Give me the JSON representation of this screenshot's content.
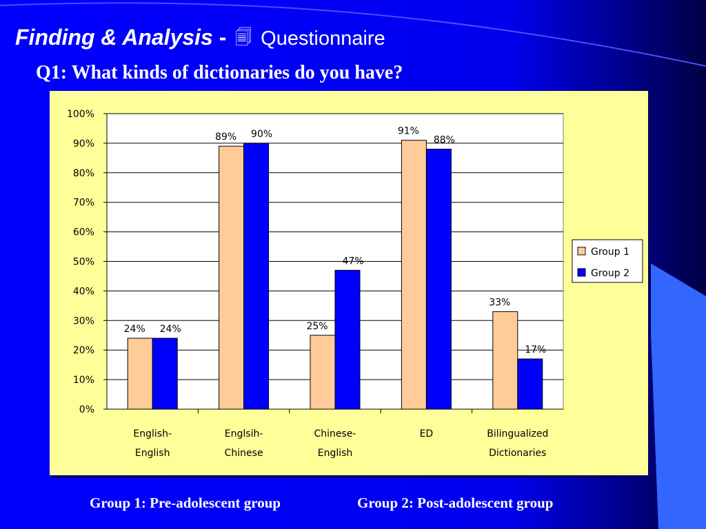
{
  "slide": {
    "title_main": "Finding & Analysis",
    "title_sep": "-",
    "title_icon": "document-icon",
    "title_sub": "Questionnaire",
    "question": "Q1: What kinds of dictionaries do you have?",
    "footnote_group1": "Group 1: Pre-adolescent group",
    "footnote_group2": "Group 2: Post-adolescent group"
  },
  "colors": {
    "background": "#0000ff",
    "chart_bg": "#ffff99",
    "group1": "#ffcc99",
    "group2": "#0000ff",
    "accent_stripe": "#3366ff"
  },
  "chart_data": {
    "type": "bar",
    "categories": [
      [
        "English-",
        "English"
      ],
      [
        "Englsih-",
        "Chinese"
      ],
      [
        "Chinese-",
        "English"
      ],
      [
        "ED"
      ],
      [
        "Bilingualized",
        "Dictionaries"
      ]
    ],
    "series": [
      {
        "name": "Group 1",
        "values": [
          24,
          89,
          25,
          91,
          33
        ],
        "labels": [
          "24%",
          "89%",
          "25%",
          "91%",
          "33%"
        ]
      },
      {
        "name": "Group 2",
        "values": [
          24,
          90,
          47,
          88,
          17
        ],
        "labels": [
          "24%",
          "90%",
          "47%",
          "88%",
          "17%"
        ]
      }
    ],
    "ylim": [
      0,
      100
    ],
    "yticks": [
      "0%",
      "10%",
      "20%",
      "30%",
      "40%",
      "50%",
      "60%",
      "70%",
      "80%",
      "90%",
      "100%"
    ],
    "grid": true,
    "legend": "right"
  }
}
